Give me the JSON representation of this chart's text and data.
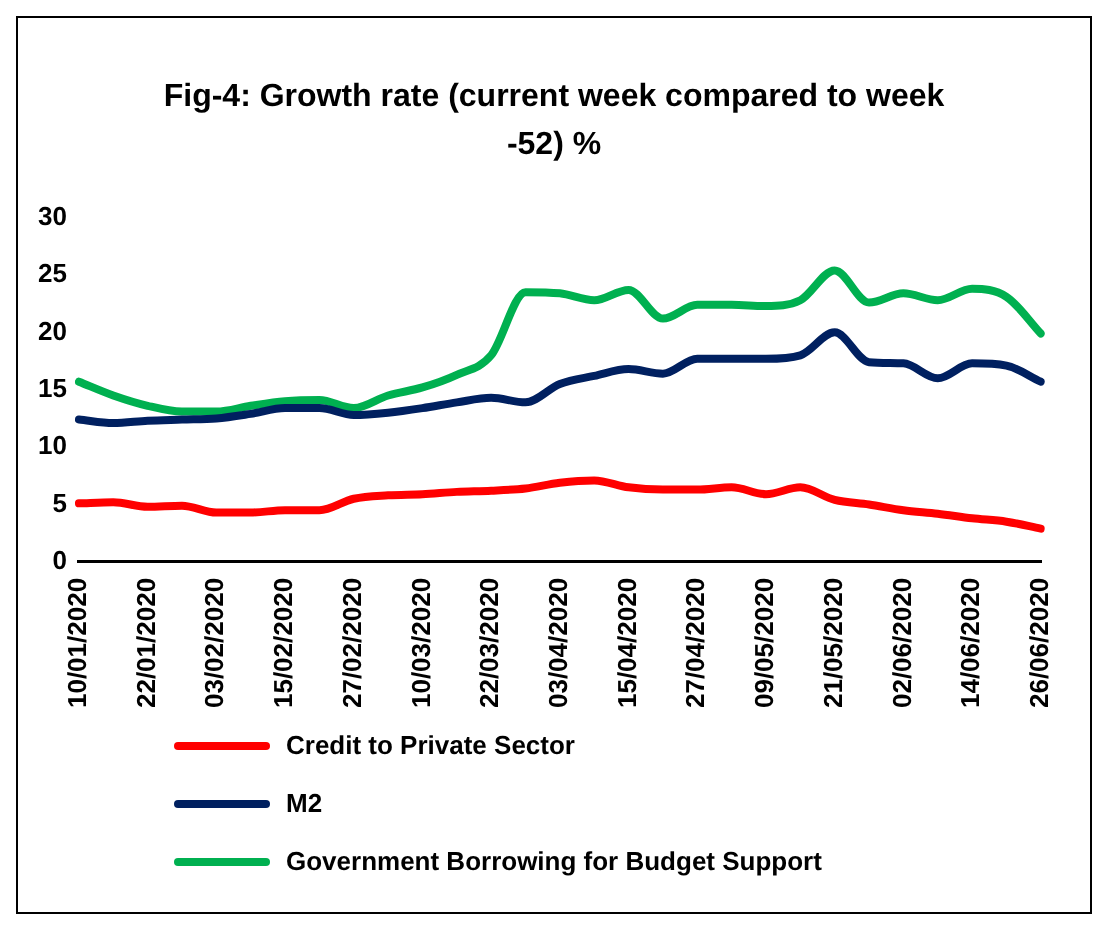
{
  "chart_data": {
    "type": "line",
    "title": "Fig-4: Growth rate (current week compared to week -52) %",
    "categories": [
      "10/01/2020",
      null,
      "22/01/2020",
      null,
      "03/02/2020",
      null,
      "15/02/2020",
      null,
      "27/02/2020",
      null,
      "10/03/2020",
      null,
      "22/03/2020",
      null,
      "03/04/2020",
      null,
      "15/04/2020",
      null,
      "27/04/2020",
      null,
      "09/05/2020",
      null,
      "21/05/2020",
      null,
      "02/06/2020",
      null,
      "14/06/2020",
      null,
      "26/06/2020"
    ],
    "series": [
      {
        "name": "Credit to Private Sector",
        "color": "#ff0000",
        "values": [
          5.1,
          5.2,
          4.8,
          4.9,
          4.3,
          4.3,
          4.5,
          4.5,
          5.5,
          5.8,
          5.9,
          6.1,
          6.2,
          6.4,
          6.9,
          7.1,
          6.5,
          6.3,
          6.3,
          6.5,
          5.9,
          6.5,
          5.4,
          5.0,
          4.5,
          4.2,
          3.8,
          3.5,
          2.9
        ]
      },
      {
        "name": "M2",
        "color": "#002060",
        "values": [
          12.4,
          12.1,
          12.3,
          12.4,
          12.5,
          12.9,
          13.4,
          13.4,
          12.8,
          13.0,
          13.4,
          13.9,
          14.3,
          13.9,
          15.5,
          16.2,
          16.8,
          16.4,
          17.7,
          17.7,
          17.7,
          18.0,
          20.0,
          17.4,
          17.3,
          16.0,
          17.3,
          17.1,
          15.7
        ]
      },
      {
        "name": "Government Borrowing for Budget Support",
        "color": "#00b050",
        "values": [
          15.7,
          14.5,
          13.6,
          13.1,
          13.1,
          13.6,
          14.0,
          14.1,
          13.4,
          14.5,
          15.2,
          16.3,
          18.0,
          23.5,
          23.4,
          22.8,
          23.7,
          21.2,
          22.4,
          22.4,
          22.3,
          22.8,
          25.4,
          22.6,
          23.4,
          22.8,
          23.8,
          23.1,
          19.9
        ]
      }
    ],
    "ylim": [
      0,
      30
    ],
    "yticks": [
      0,
      5,
      10,
      15,
      20,
      25,
      30
    ],
    "grid": false,
    "legend": "bottom",
    "marker": "none",
    "line_style": "solid"
  }
}
